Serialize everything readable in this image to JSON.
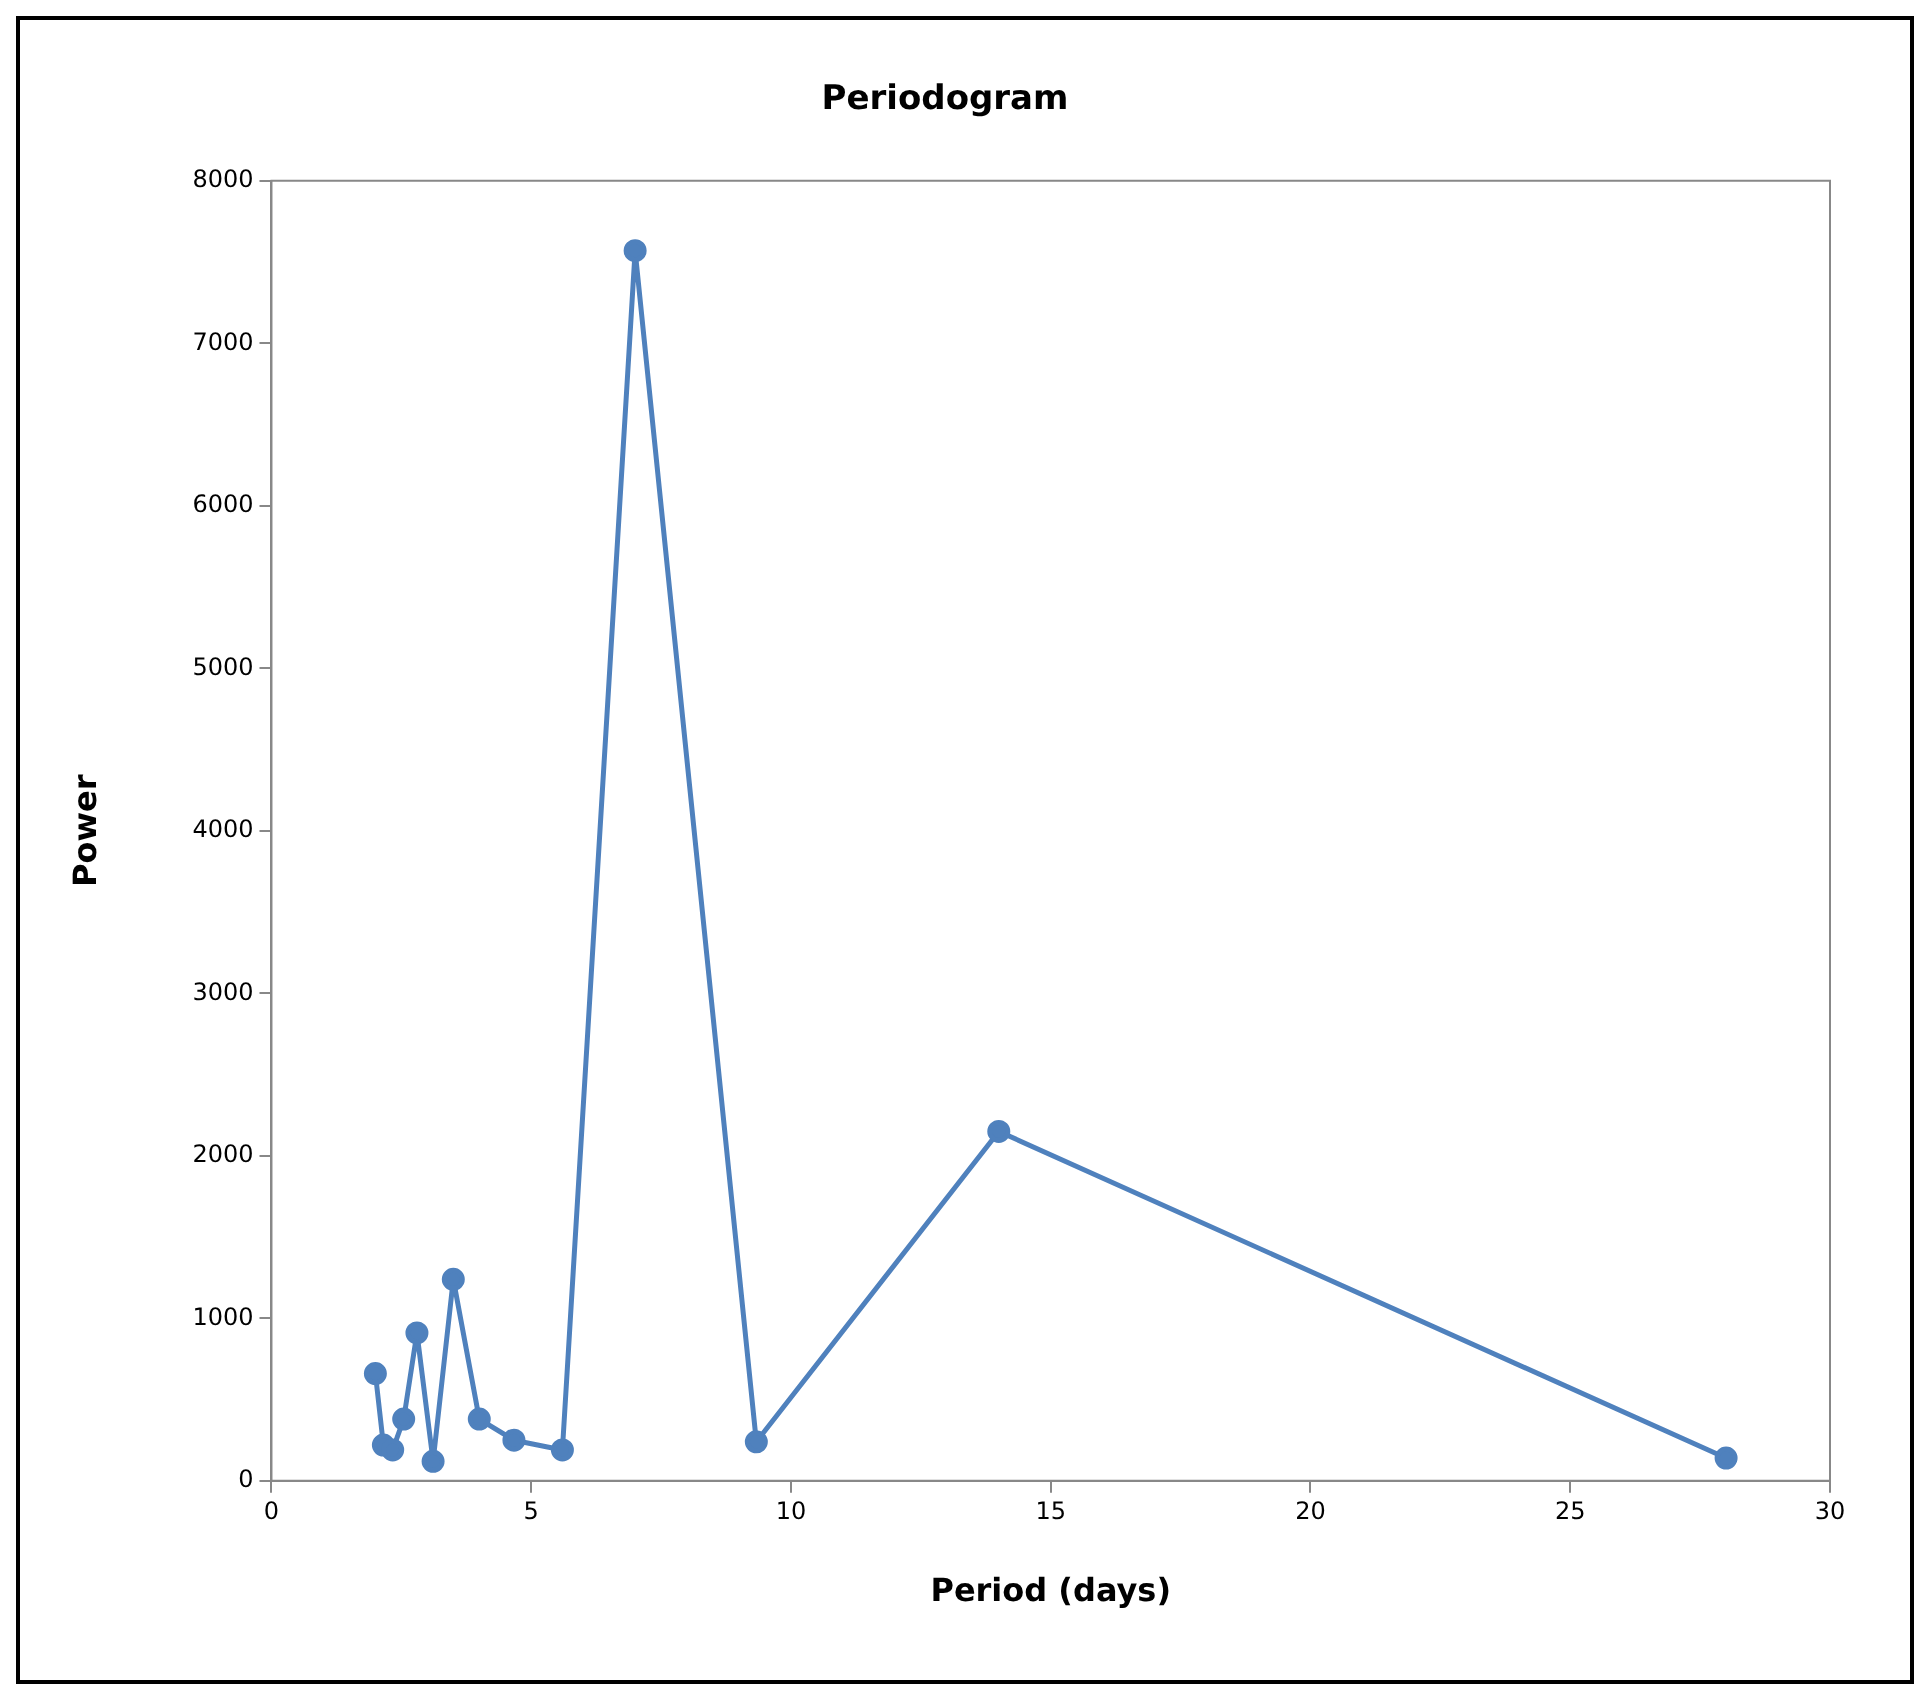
{
  "chart_data": {
    "type": "line",
    "title": "Periodogram",
    "xlabel": "Period (days)",
    "ylabel": "Power",
    "x": [
      2.0,
      2.154,
      2.333,
      2.545,
      2.8,
      3.111,
      3.5,
      4.0,
      4.667,
      5.6,
      7.0,
      9.333,
      14.0,
      28.0
    ],
    "series": [
      {
        "color": "#4f81bd",
        "values": [
          660,
          220,
          190,
          380,
          910,
          120,
          1240,
          380,
          250,
          190,
          7570,
          240,
          2150,
          140
        ]
      }
    ],
    "xlim": [
      0,
      30
    ],
    "xticks": [
      0,
      5,
      10,
      15,
      20,
      25,
      30
    ],
    "ylim": [
      0,
      8000
    ],
    "yticks": [
      0,
      1000,
      2000,
      3000,
      4000,
      5000,
      6000,
      7000,
      8000
    ],
    "grid": false,
    "legend": false,
    "marker": "circle",
    "line_style": "solid"
  }
}
